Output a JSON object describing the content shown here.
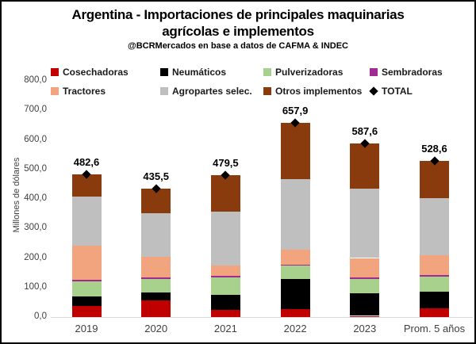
{
  "title": {
    "line1": "Argentina - Importaciones de principales maquinarias",
    "line2": "agrícolas e implementos",
    "subtitle": "@BCRMercados en base a datos de CAFMA & INDEC"
  },
  "y_axis": {
    "label": "Millones de dólares",
    "tick_labels": [
      "800,0",
      "700,0",
      "600,0",
      "500,0",
      "400,0",
      "300,0",
      "200,0",
      "100,0",
      "0,0"
    ]
  },
  "chart_data": {
    "type": "bar",
    "stacked": true,
    "grid": false,
    "legend_position": "top",
    "ylim": [
      0,
      800
    ],
    "ytick_step": 100,
    "ylabel": "Millones de dólares",
    "xlabel": "",
    "title": "Argentina - Importaciones de principales maquinarias agrícolas e implementos",
    "subtitle": "@BCRMercados en base a datos de CAFMA & INDEC",
    "categories": [
      "2019",
      "2020",
      "2021",
      "2022",
      "2023",
      "Prom. 5 años"
    ],
    "series": [
      {
        "name": "Cosechadoras",
        "color": "#C00000",
        "values": [
          37.0,
          57.0,
          24.0,
          26.0,
          4.0,
          29.6
        ]
      },
      {
        "name": "Neumáticos",
        "color": "#000000",
        "values": [
          32.0,
          27.0,
          50.0,
          103.0,
          76.0,
          57.6
        ]
      },
      {
        "name": "Pulverizadoras",
        "color": "#A9D18E",
        "values": [
          53.0,
          46.0,
          59.0,
          45.0,
          49.0,
          50.4
        ]
      },
      {
        "name": "Sembradoras",
        "color": "#A02B93",
        "values": [
          5.0,
          5.0,
          5.5,
          4.0,
          4.0,
          4.7
        ]
      },
      {
        "name": "Tractores",
        "color": "#F2A47E",
        "values": [
          114.0,
          68.0,
          37.0,
          51.0,
          67.0,
          67.4
        ]
      },
      {
        "name": "Agropartes selec.",
        "color": "#BFBFBF",
        "values": [
          168.0,
          148.0,
          181.5,
          238.0,
          235.0,
          194.1
        ]
      },
      {
        "name": "Otros implementos",
        "color": "#8A3B0E",
        "values": [
          73.6,
          84.5,
          122.5,
          190.9,
          152.6,
          124.8
        ]
      }
    ],
    "totals": {
      "name": "TOTAL",
      "marker": "diamond",
      "color": "#000000",
      "values": [
        482.6,
        435.5,
        479.5,
        657.9,
        587.6,
        528.6
      ],
      "labels": [
        "482,6",
        "435,5",
        "479,5",
        "657,9",
        "587,6",
        "528,6"
      ]
    }
  }
}
